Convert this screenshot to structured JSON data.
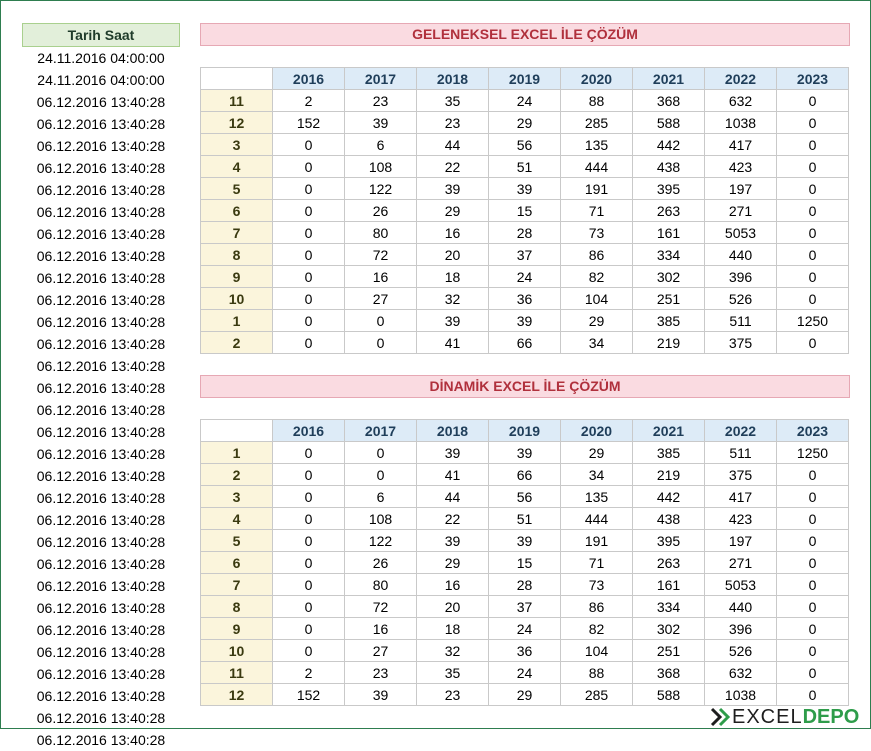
{
  "left_column": {
    "header": "Tarih Saat",
    "rows": [
      "24.11.2016 04:00:00",
      "24.11.2016 04:00:00",
      "06.12.2016 13:40:28",
      "06.12.2016 13:40:28",
      "06.12.2016 13:40:28",
      "06.12.2016 13:40:28",
      "06.12.2016 13:40:28",
      "06.12.2016 13:40:28",
      "06.12.2016 13:40:28",
      "06.12.2016 13:40:28",
      "06.12.2016 13:40:28",
      "06.12.2016 13:40:28",
      "06.12.2016 13:40:28",
      "06.12.2016 13:40:28",
      "06.12.2016 13:40:28",
      "06.12.2016 13:40:28",
      "06.12.2016 13:40:28",
      "06.12.2016 13:40:28",
      "06.12.2016 13:40:28",
      "06.12.2016 13:40:28",
      "06.12.2016 13:40:28",
      "06.12.2016 13:40:28",
      "06.12.2016 13:40:28",
      "06.12.2016 13:40:28",
      "06.12.2016 13:40:28",
      "06.12.2016 13:40:28",
      "06.12.2016 13:40:28",
      "06.12.2016 13:40:28",
      "06.12.2016 13:40:28",
      "06.12.2016 13:40:28",
      "06.12.2016 13:40:28",
      "06.12.2016 13:40:28"
    ]
  },
  "years": [
    "2016",
    "2017",
    "2018",
    "2019",
    "2020",
    "2021",
    "2022",
    "2023"
  ],
  "table1": {
    "title": "GELENEKSEL EXCEL İLE ÇÖZÜM",
    "rows": [
      {
        "label": "11",
        "values": [
          "2",
          "23",
          "35",
          "24",
          "88",
          "368",
          "632",
          "0"
        ]
      },
      {
        "label": "12",
        "values": [
          "152",
          "39",
          "23",
          "29",
          "285",
          "588",
          "1038",
          "0"
        ]
      },
      {
        "label": "3",
        "values": [
          "0",
          "6",
          "44",
          "56",
          "135",
          "442",
          "417",
          "0"
        ]
      },
      {
        "label": "4",
        "values": [
          "0",
          "108",
          "22",
          "51",
          "444",
          "438",
          "423",
          "0"
        ]
      },
      {
        "label": "5",
        "values": [
          "0",
          "122",
          "39",
          "39",
          "191",
          "395",
          "197",
          "0"
        ]
      },
      {
        "label": "6",
        "values": [
          "0",
          "26",
          "29",
          "15",
          "71",
          "263",
          "271",
          "0"
        ]
      },
      {
        "label": "7",
        "values": [
          "0",
          "80",
          "16",
          "28",
          "73",
          "161",
          "5053",
          "0"
        ]
      },
      {
        "label": "8",
        "values": [
          "0",
          "72",
          "20",
          "37",
          "86",
          "334",
          "440",
          "0"
        ]
      },
      {
        "label": "9",
        "values": [
          "0",
          "16",
          "18",
          "24",
          "82",
          "302",
          "396",
          "0"
        ]
      },
      {
        "label": "10",
        "values": [
          "0",
          "27",
          "32",
          "36",
          "104",
          "251",
          "526",
          "0"
        ]
      },
      {
        "label": "1",
        "values": [
          "0",
          "0",
          "39",
          "39",
          "29",
          "385",
          "511",
          "1250"
        ]
      },
      {
        "label": "2",
        "values": [
          "0",
          "0",
          "41",
          "66",
          "34",
          "219",
          "375",
          "0"
        ]
      }
    ]
  },
  "table2": {
    "title": "DİNAMİK EXCEL İLE ÇÖZÜM",
    "rows": [
      {
        "label": "1",
        "values": [
          "0",
          "0",
          "39",
          "39",
          "29",
          "385",
          "511",
          "1250"
        ]
      },
      {
        "label": "2",
        "values": [
          "0",
          "0",
          "41",
          "66",
          "34",
          "219",
          "375",
          "0"
        ]
      },
      {
        "label": "3",
        "values": [
          "0",
          "6",
          "44",
          "56",
          "135",
          "442",
          "417",
          "0"
        ]
      },
      {
        "label": "4",
        "values": [
          "0",
          "108",
          "22",
          "51",
          "444",
          "438",
          "423",
          "0"
        ]
      },
      {
        "label": "5",
        "values": [
          "0",
          "122",
          "39",
          "39",
          "191",
          "395",
          "197",
          "0"
        ]
      },
      {
        "label": "6",
        "values": [
          "0",
          "26",
          "29",
          "15",
          "71",
          "263",
          "271",
          "0"
        ]
      },
      {
        "label": "7",
        "values": [
          "0",
          "80",
          "16",
          "28",
          "73",
          "161",
          "5053",
          "0"
        ]
      },
      {
        "label": "8",
        "values": [
          "0",
          "72",
          "20",
          "37",
          "86",
          "334",
          "440",
          "0"
        ]
      },
      {
        "label": "9",
        "values": [
          "0",
          "16",
          "18",
          "24",
          "82",
          "302",
          "396",
          "0"
        ]
      },
      {
        "label": "10",
        "values": [
          "0",
          "27",
          "32",
          "36",
          "104",
          "251",
          "526",
          "0"
        ]
      },
      {
        "label": "11",
        "values": [
          "2",
          "23",
          "35",
          "24",
          "88",
          "368",
          "632",
          "0"
        ]
      },
      {
        "label": "12",
        "values": [
          "152",
          "39",
          "23",
          "29",
          "285",
          "588",
          "1038",
          "0"
        ]
      }
    ]
  },
  "logo": {
    "icon": "excel-depo-logo-icon",
    "text_part1": "EXCEL",
    "text_part2": "DEPO"
  },
  "colors": {
    "left_header_bg": "#e2efda",
    "title_bg": "#fadbe1",
    "title_text": "#b0303c",
    "year_header_bg": "#ddebf7",
    "row_label_bg": "#fbf5dc"
  }
}
